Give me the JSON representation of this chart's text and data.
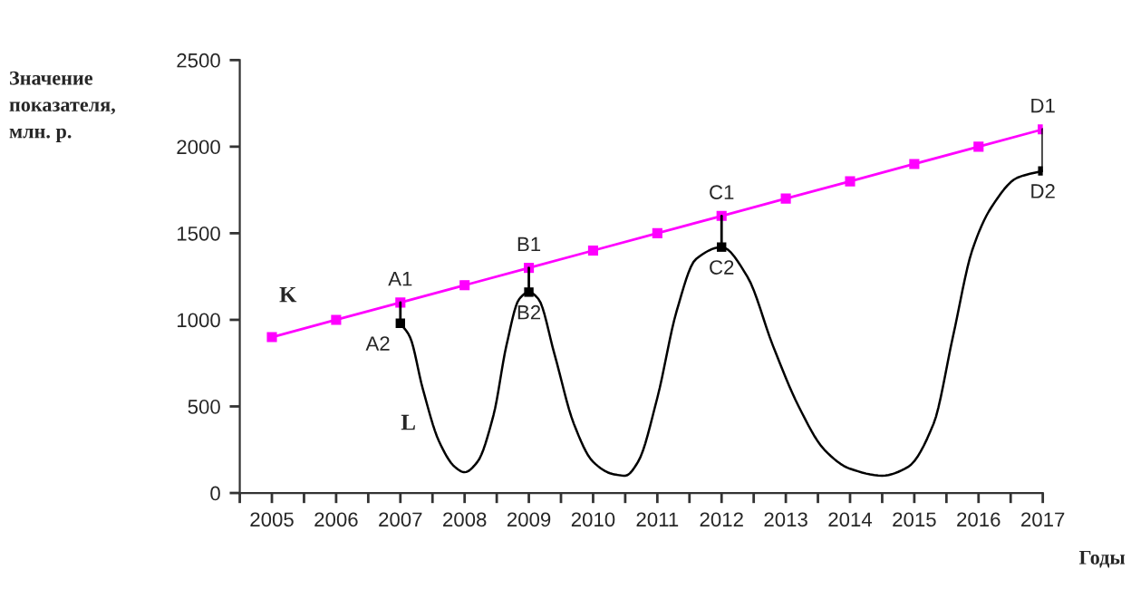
{
  "chart_data": {
    "type": "line",
    "xlabel": "Годы",
    "ylabel": "Значение\nпоказателя,\nмлн. р.",
    "xlim": [
      2004.5,
      2017
    ],
    "ylim": [
      0,
      2500
    ],
    "yticks": [
      0,
      500,
      1000,
      1500,
      2000,
      2500
    ],
    "xticks": [
      {
        "value": 2004.5,
        "label": null
      },
      2005,
      {
        "value": 2005.5,
        "label": null
      },
      2006,
      {
        "value": 2006.5,
        "label": null
      },
      2007,
      {
        "value": 2007.5,
        "label": null
      },
      2008,
      {
        "value": 2008.5,
        "label": null
      },
      2009,
      {
        "value": 2009.5,
        "label": null
      },
      2010,
      {
        "value": 2010.5,
        "label": null
      },
      2011,
      {
        "value": 2011.5,
        "label": null
      },
      2012,
      {
        "value": 2012.5,
        "label": null
      },
      2013,
      {
        "value": 2013.5,
        "label": null
      },
      2014,
      {
        "value": 2014.5,
        "label": null
      },
      2015,
      {
        "value": 2015.5,
        "label": null
      },
      2016,
      {
        "value": 2016.5,
        "label": null
      },
      2017
    ],
    "grid": false,
    "series": [
      {
        "color": "#ff00ff",
        "marker": "square",
        "x": [
          2005,
          2006,
          2007,
          2008,
          2009,
          2010,
          2011,
          2012,
          2013,
          2014,
          2015,
          2016,
          2017
        ],
        "values": [
          900,
          1000,
          1100,
          1200,
          1300,
          1400,
          1500,
          1600,
          1700,
          1800,
          1900,
          2000,
          2100
        ]
      },
      {
        "color": "#000000",
        "marker": "none",
        "x": [
          2007,
          2007.15,
          2007.35,
          2007.6,
          2007.85,
          2008,
          2008.2,
          2008.45,
          2008.65,
          2008.85,
          2009,
          2009.15,
          2009.4,
          2009.7,
          2010,
          2010.3,
          2010.5,
          2010.7,
          2011,
          2011.3,
          2011.6,
          2012,
          2012.4,
          2012.8,
          2013.2,
          2013.6,
          2014,
          2014.5,
          2014.9,
          2015.3,
          2015.6,
          2015.9,
          2016.2,
          2016.6,
          2017
        ],
        "values": [
          980,
          900,
          600,
          300,
          150,
          120,
          180,
          450,
          850,
          1120,
          1160,
          1120,
          800,
          400,
          180,
          110,
          100,
          180,
          550,
          1050,
          1350,
          1420,
          1250,
          850,
          500,
          250,
          140,
          100,
          150,
          400,
          900,
          1400,
          1650,
          1820,
          1860
        ]
      },
      {
        "type": "scatter",
        "color": "#000000",
        "marker": "square",
        "x": [
          2007,
          2009,
          2012,
          2017
        ],
        "values": [
          980,
          1160,
          1420,
          1860
        ]
      },
      {
        "color": "#000000",
        "marker": "none",
        "x": [
          2007,
          2007
        ],
        "values": [
          1100,
          980
        ]
      },
      {
        "color": "#000000",
        "marker": "none",
        "x": [
          2009,
          2009
        ],
        "values": [
          1300,
          1160
        ]
      },
      {
        "color": "#000000",
        "marker": "none",
        "x": [
          2012,
          2012
        ],
        "values": [
          1600,
          1420
        ]
      },
      {
        "color": "#000000",
        "marker": "none",
        "x": [
          2017,
          2017
        ],
        "values": [
          2100,
          1860
        ]
      }
    ],
    "annotations": [
      "K",
      "L",
      {
        "text": "A1",
        "x": 2007,
        "y": 1100
      },
      {
        "text": "A2",
        "x": 2007,
        "y": 980
      },
      {
        "text": "B1",
        "x": 2009,
        "y": 1300
      },
      {
        "text": "B2",
        "x": 2009,
        "y": 1160
      },
      {
        "text": "C1",
        "x": 2012,
        "y": 1600
      },
      {
        "text": "C2",
        "x": 2012,
        "y": 1420
      },
      {
        "text": "D1",
        "x": 2017,
        "y": 2100
      },
      {
        "text": "D2",
        "x": 2017,
        "y": 1860
      }
    ]
  }
}
